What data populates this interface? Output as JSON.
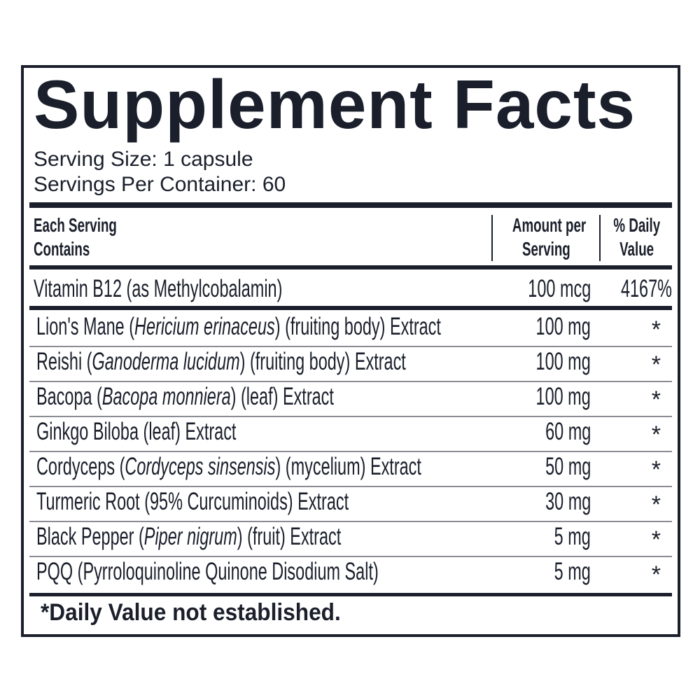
{
  "title": "Supplement Facts",
  "serving_size": "Serving Size: 1 capsule",
  "servings_per_container": "Servings Per Container: 60",
  "columns": {
    "ingredient_line1": "Each Serving",
    "ingredient_line2": "Contains",
    "amount_line1": "Amount per",
    "amount_line2": "Serving",
    "dv_line1": "% Daily",
    "dv_line2": "Value"
  },
  "vitamin": {
    "name": "Vitamin B12 (as Methylcobalamin)",
    "amount": "100 mcg",
    "dv": "4167%"
  },
  "ingredients": [
    {
      "pre": "Lion's Mane (",
      "italic": "Hericium erinaceus",
      "post": ") (fruiting body) Extract",
      "amount": "100 mg",
      "dv": "*"
    },
    {
      "pre": "Reishi (",
      "italic": "Ganoderma lucidum",
      "post": ") (fruiting body) Extract",
      "amount": "100 mg",
      "dv": "*"
    },
    {
      "pre": "Bacopa (",
      "italic": "Bacopa monniera",
      "post": ") (leaf) Extract",
      "amount": "100 mg",
      "dv": "*"
    },
    {
      "pre": "Ginkgo Biloba (leaf) Extract",
      "italic": "",
      "post": "",
      "amount": "60 mg",
      "dv": "*"
    },
    {
      "pre": "Cordyceps (",
      "italic": "Cordyceps sinsensis",
      "post": ") (mycelium) Extract",
      "amount": "50 mg",
      "dv": "*"
    },
    {
      "pre": "Turmeric Root (95% Curcuminoids) Extract",
      "italic": "",
      "post": "",
      "amount": "30 mg",
      "dv": "*"
    },
    {
      "pre": "Black Pepper (",
      "italic": "Piper nigrum",
      "post": ") (fruit) Extract",
      "amount": "5 mg",
      "dv": "*"
    },
    {
      "pre": "PQQ (Pyrroloquinoline Quinone Disodium Salt)",
      "italic": "",
      "post": "",
      "amount": "5 mg",
      "dv": "*"
    }
  ],
  "footnote": "*Daily Value not established.",
  "colors": {
    "ink": "#1a1f2b",
    "rule": "#8a8d93"
  }
}
